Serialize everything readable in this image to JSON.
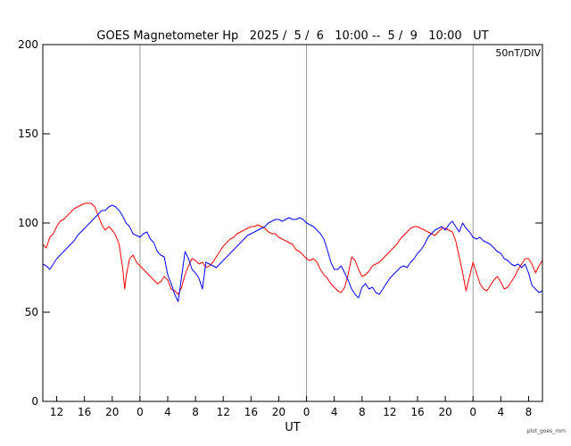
{
  "chart_data": {
    "type": "line",
    "title": "GOES Magnetometer Hp   2025 /  5 /  6   10:00 --  5 /  9   10:00   UT",
    "xlabel": "UT",
    "ylabel": "",
    "unit_note": "50nT/DIV",
    "credit": "plot_goes_mm",
    "x_unit": "hours since 2025-05-06 10:00 UT",
    "xlim": [
      0,
      72
    ],
    "ylim": [
      0,
      200
    ],
    "y_ticks": [
      0,
      50,
      100,
      150,
      200
    ],
    "x_ticks": [
      {
        "x": 2,
        "label": "12"
      },
      {
        "x": 6,
        "label": "16"
      },
      {
        "x": 10,
        "label": "20"
      },
      {
        "x": 14,
        "label": "0"
      },
      {
        "x": 18,
        "label": "4"
      },
      {
        "x": 22,
        "label": "8"
      },
      {
        "x": 26,
        "label": "12"
      },
      {
        "x": 30,
        "label": "16"
      },
      {
        "x": 34,
        "label": "20"
      },
      {
        "x": 38,
        "label": "0"
      },
      {
        "x": 42,
        "label": "4"
      },
      {
        "x": 46,
        "label": "8"
      },
      {
        "x": 50,
        "label": "12"
      },
      {
        "x": 54,
        "label": "16"
      },
      {
        "x": 58,
        "label": "20"
      },
      {
        "x": 62,
        "label": "0"
      },
      {
        "x": 66,
        "label": "4"
      },
      {
        "x": 70,
        "label": "8"
      }
    ],
    "day_boundaries": [
      14,
      38,
      62
    ],
    "grid": false,
    "series": [
      {
        "color": "#ff0000",
        "points": [
          [
            0,
            88
          ],
          [
            0.5,
            86
          ],
          [
            1,
            92
          ],
          [
            1.5,
            94
          ],
          [
            2,
            98
          ],
          [
            2.5,
            101
          ],
          [
            3,
            102
          ],
          [
            3.5,
            104
          ],
          [
            4,
            106
          ],
          [
            4.5,
            108
          ],
          [
            5,
            109
          ],
          [
            5.5,
            110
          ],
          [
            6,
            111
          ],
          [
            6.5,
            111
          ],
          [
            7,
            111
          ],
          [
            7.5,
            109
          ],
          [
            8,
            104
          ],
          [
            8.5,
            99
          ],
          [
            9,
            96
          ],
          [
            9.5,
            98
          ],
          [
            10,
            96
          ],
          [
            10.5,
            93
          ],
          [
            11,
            88
          ],
          [
            11.5,
            75
          ],
          [
            11.8,
            63
          ],
          [
            12,
            70
          ],
          [
            12.5,
            80
          ],
          [
            13,
            82
          ],
          [
            13.5,
            78
          ],
          [
            14,
            76
          ],
          [
            14.5,
            74
          ],
          [
            15,
            72
          ],
          [
            15.5,
            70
          ],
          [
            16,
            68
          ],
          [
            16.5,
            66
          ],
          [
            17,
            67
          ],
          [
            17.5,
            70
          ],
          [
            18,
            68
          ],
          [
            18.5,
            63
          ],
          [
            19,
            62
          ],
          [
            19.5,
            60
          ],
          [
            20,
            64
          ],
          [
            20.5,
            71
          ],
          [
            21,
            76
          ],
          [
            21.5,
            80
          ],
          [
            22,
            79
          ],
          [
            22.5,
            77
          ],
          [
            23,
            78
          ],
          [
            23.5,
            75
          ],
          [
            24,
            76
          ],
          [
            24.5,
            78
          ],
          [
            25,
            81
          ],
          [
            25.5,
            84
          ],
          [
            26,
            87
          ],
          [
            26.5,
            89
          ],
          [
            27,
            91
          ],
          [
            27.5,
            92
          ],
          [
            28,
            94
          ],
          [
            28.5,
            95
          ],
          [
            29,
            96
          ],
          [
            29.5,
            97
          ],
          [
            30,
            98
          ],
          [
            30.5,
            98
          ],
          [
            31,
            99
          ],
          [
            31.5,
            98
          ],
          [
            32,
            97
          ],
          [
            32.5,
            95
          ],
          [
            33,
            94
          ],
          [
            33.5,
            94
          ],
          [
            34,
            92
          ],
          [
            34.5,
            91
          ],
          [
            35,
            90
          ],
          [
            35.5,
            89
          ],
          [
            36,
            88
          ],
          [
            36.5,
            85
          ],
          [
            37,
            84
          ],
          [
            37.5,
            82
          ],
          [
            38,
            80
          ],
          [
            38.5,
            79
          ],
          [
            39,
            80
          ],
          [
            39.5,
            78
          ],
          [
            40,
            74
          ],
          [
            40.5,
            71
          ],
          [
            41,
            69
          ],
          [
            41.5,
            66
          ],
          [
            42,
            64
          ],
          [
            42.5,
            62
          ],
          [
            43,
            61
          ],
          [
            43.5,
            64
          ],
          [
            44,
            71
          ],
          [
            44.5,
            81
          ],
          [
            45,
            79
          ],
          [
            45.5,
            74
          ],
          [
            46,
            70
          ],
          [
            46.5,
            71
          ],
          [
            47,
            73
          ],
          [
            47.5,
            76
          ],
          [
            48,
            77
          ],
          [
            48.5,
            78
          ],
          [
            49,
            80
          ],
          [
            49.5,
            82
          ],
          [
            50,
            84
          ],
          [
            50.5,
            86
          ],
          [
            51,
            88
          ],
          [
            51.5,
            91
          ],
          [
            52,
            93
          ],
          [
            52.5,
            95
          ],
          [
            53,
            97
          ],
          [
            53.5,
            98
          ],
          [
            54,
            98
          ],
          [
            54.5,
            97
          ],
          [
            55,
            96
          ],
          [
            55.5,
            95
          ],
          [
            56,
            94
          ],
          [
            56.5,
            93
          ],
          [
            57,
            95
          ],
          [
            57.5,
            97
          ],
          [
            58,
            97
          ],
          [
            58.5,
            96
          ],
          [
            59,
            95
          ],
          [
            59.5,
            90
          ],
          [
            60,
            81
          ],
          [
            60.5,
            72
          ],
          [
            61,
            62
          ],
          [
            61.5,
            70
          ],
          [
            62,
            78
          ],
          [
            62.5,
            72
          ],
          [
            63,
            66
          ],
          [
            63.5,
            63
          ],
          [
            64,
            62
          ],
          [
            64.5,
            65
          ],
          [
            65,
            68
          ],
          [
            65.5,
            70
          ],
          [
            66,
            67
          ],
          [
            66.5,
            63
          ],
          [
            67,
            64
          ],
          [
            67.5,
            67
          ],
          [
            68,
            70
          ],
          [
            68.5,
            74
          ],
          [
            69,
            77
          ],
          [
            69.5,
            80
          ],
          [
            70,
            80
          ],
          [
            70.5,
            77
          ],
          [
            71,
            72
          ],
          [
            71.5,
            76
          ],
          [
            72,
            79
          ]
        ]
      },
      {
        "color": "#0000ff",
        "points": [
          [
            0,
            77
          ],
          [
            0.5,
            76
          ],
          [
            1,
            74
          ],
          [
            1.5,
            77
          ],
          [
            2,
            80
          ],
          [
            2.5,
            82
          ],
          [
            3,
            84
          ],
          [
            3.5,
            86
          ],
          [
            4,
            88
          ],
          [
            4.5,
            90
          ],
          [
            5,
            93
          ],
          [
            5.5,
            95
          ],
          [
            6,
            97
          ],
          [
            6.5,
            99
          ],
          [
            7,
            101
          ],
          [
            7.5,
            103
          ],
          [
            8,
            105
          ],
          [
            8.5,
            107
          ],
          [
            9,
            107
          ],
          [
            9.5,
            109
          ],
          [
            10,
            110
          ],
          [
            10.5,
            109
          ],
          [
            11,
            107
          ],
          [
            11.5,
            104
          ],
          [
            12,
            100
          ],
          [
            12.5,
            98
          ],
          [
            13,
            94
          ],
          [
            13.5,
            93
          ],
          [
            14,
            92
          ],
          [
            14.5,
            94
          ],
          [
            15,
            95
          ],
          [
            15.5,
            91
          ],
          [
            16,
            89
          ],
          [
            16.5,
            84
          ],
          [
            17,
            82
          ],
          [
            17.5,
            81
          ],
          [
            18,
            71
          ],
          [
            18.5,
            66
          ],
          [
            19,
            60
          ],
          [
            19.5,
            56
          ],
          [
            20,
            70
          ],
          [
            20.5,
            84
          ],
          [
            21,
            80
          ],
          [
            21.5,
            74
          ],
          [
            22,
            72
          ],
          [
            22.5,
            69
          ],
          [
            23,
            63
          ],
          [
            23.5,
            78
          ],
          [
            24,
            77
          ],
          [
            24.5,
            76
          ],
          [
            25,
            75
          ],
          [
            25.5,
            77
          ],
          [
            26,
            79
          ],
          [
            26.5,
            81
          ],
          [
            27,
            83
          ],
          [
            27.5,
            85
          ],
          [
            28,
            87
          ],
          [
            28.5,
            89
          ],
          [
            29,
            91
          ],
          [
            29.5,
            93
          ],
          [
            30,
            94
          ],
          [
            30.5,
            95
          ],
          [
            31,
            96
          ],
          [
            31.5,
            97
          ],
          [
            32,
            98
          ],
          [
            32.5,
            100
          ],
          [
            33,
            101
          ],
          [
            33.5,
            102
          ],
          [
            34,
            102
          ],
          [
            34.5,
            101
          ],
          [
            35,
            102
          ],
          [
            35.5,
            103
          ],
          [
            36,
            102
          ],
          [
            36.5,
            102
          ],
          [
            37,
            103
          ],
          [
            37.5,
            102
          ],
          [
            38,
            100
          ],
          [
            38.5,
            99
          ],
          [
            39,
            98
          ],
          [
            39.5,
            96
          ],
          [
            40,
            94
          ],
          [
            40.5,
            91
          ],
          [
            41,
            85
          ],
          [
            41.5,
            78
          ],
          [
            42,
            74
          ],
          [
            42.5,
            74
          ],
          [
            43,
            76
          ],
          [
            43.5,
            72
          ],
          [
            44,
            68
          ],
          [
            44.5,
            63
          ],
          [
            45,
            60
          ],
          [
            45.5,
            58
          ],
          [
            46,
            64
          ],
          [
            46.5,
            66
          ],
          [
            47,
            63
          ],
          [
            47.5,
            64
          ],
          [
            48,
            61
          ],
          [
            48.5,
            60
          ],
          [
            49,
            63
          ],
          [
            49.5,
            66
          ],
          [
            50,
            69
          ],
          [
            50.5,
            71
          ],
          [
            51,
            73
          ],
          [
            51.5,
            75
          ],
          [
            52,
            76
          ],
          [
            52.5,
            75
          ],
          [
            53,
            78
          ],
          [
            53.5,
            80
          ],
          [
            54,
            83
          ],
          [
            54.5,
            85
          ],
          [
            55,
            88
          ],
          [
            55.5,
            92
          ],
          [
            56,
            94
          ],
          [
            56.5,
            96
          ],
          [
            57,
            97
          ],
          [
            57.5,
            98
          ],
          [
            58,
            96
          ],
          [
            58.5,
            99
          ],
          [
            59,
            101
          ],
          [
            59.5,
            98
          ],
          [
            60,
            95
          ],
          [
            60.5,
            100
          ],
          [
            61,
            97
          ],
          [
            61.5,
            95
          ],
          [
            62,
            92
          ],
          [
            62.5,
            91
          ],
          [
            63,
            92
          ],
          [
            63.5,
            90
          ],
          [
            64,
            89
          ],
          [
            64.5,
            88
          ],
          [
            65,
            86
          ],
          [
            65.5,
            84
          ],
          [
            66,
            83
          ],
          [
            66.5,
            80
          ],
          [
            67,
            79
          ],
          [
            67.5,
            77
          ],
          [
            68,
            76
          ],
          [
            68.5,
            77
          ],
          [
            69,
            75
          ],
          [
            69.5,
            77
          ],
          [
            70,
            72
          ],
          [
            70.5,
            65
          ],
          [
            71,
            63
          ],
          [
            71.5,
            61
          ],
          [
            72,
            62
          ]
        ]
      }
    ]
  }
}
